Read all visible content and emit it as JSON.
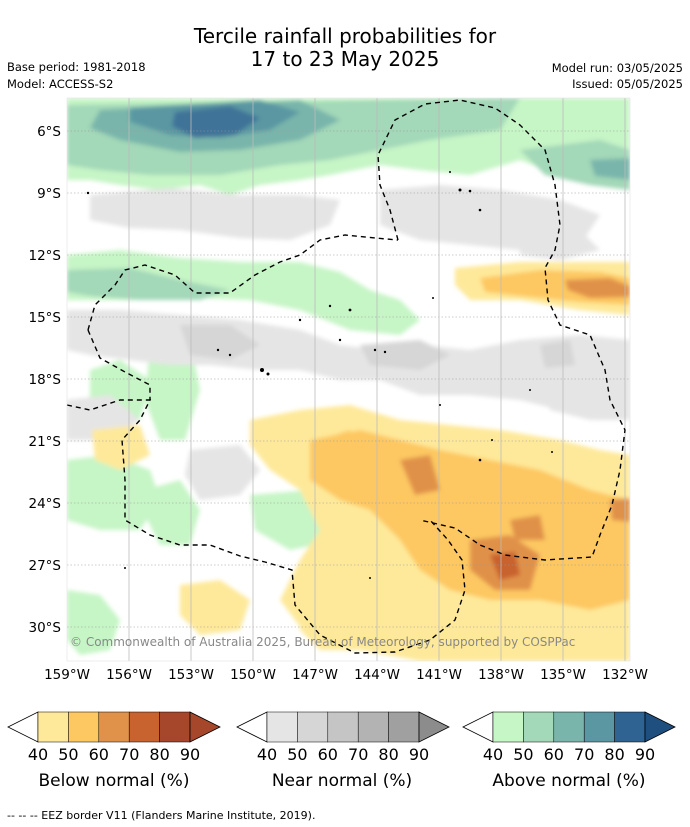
{
  "title": {
    "line1": "Tercile rainfall probabilities for",
    "line2": "17 to 23 May 2025"
  },
  "meta_left": {
    "base_period": "Base period: 1981-2018",
    "model": "Model: ACCESS-S2"
  },
  "meta_right": {
    "model_run": "Model run: 03/05/2025",
    "issued": "Issued: 05/05/2025"
  },
  "map": {
    "lat_ticks": [
      "6°S",
      "9°S",
      "12°S",
      "15°S",
      "18°S",
      "21°S",
      "24°S",
      "27°S",
      "30°S"
    ],
    "lon_ticks": [
      "159°W",
      "156°W",
      "153°W",
      "150°W",
      "147°W",
      "144°W",
      "141°W",
      "138°W",
      "135°W",
      "132°W"
    ],
    "copyright": "© Commonwealth of Australia 2025, Bureau of Meteorology, supported by COSPPac"
  },
  "colorbars": [
    {
      "label": "Below normal (%)",
      "ticks": [
        "40",
        "50",
        "60",
        "70",
        "80",
        "90"
      ],
      "colors": [
        "#fee99a",
        "#fdc862",
        "#e0914a",
        "#c8622f",
        "#a6462a",
        "#a6462a"
      ]
    },
    {
      "label": "Near normal (%)",
      "ticks": [
        "40",
        "50",
        "60",
        "70",
        "80",
        "90"
      ],
      "colors": [
        "#e5e5e5",
        "#d6d6d6",
        "#c5c5c5",
        "#b3b3b3",
        "#a0a0a0",
        "#8c8c8c"
      ]
    },
    {
      "label": "Above normal (%)",
      "ticks": [
        "40",
        "50",
        "60",
        "70",
        "80",
        "90"
      ],
      "colors": [
        "#c6f5c6",
        "#a3d8b8",
        "#79b5ab",
        "#5a97a2",
        "#2e6392",
        "#1f4f7f"
      ]
    }
  ],
  "footer": "--  --  -- EEZ border V11 (Flanders Marine Institute, 2019)."
}
